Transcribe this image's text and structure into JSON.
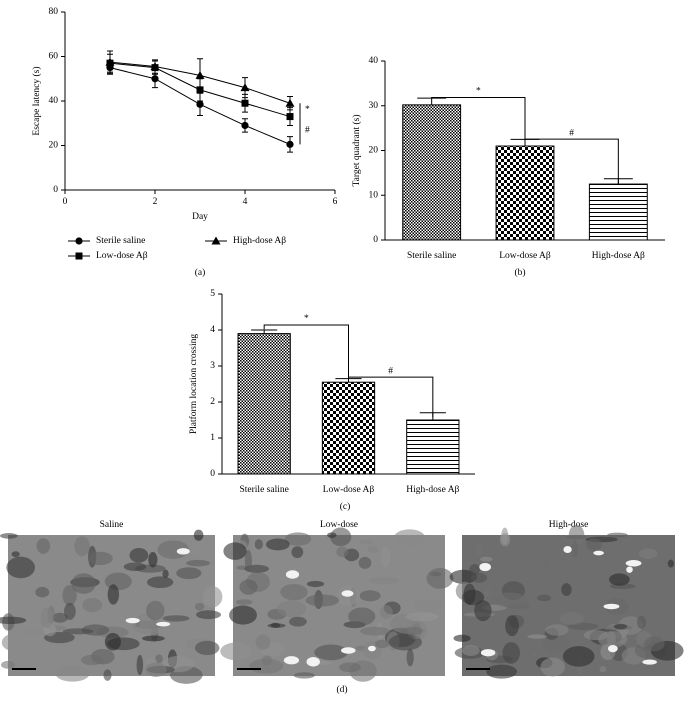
{
  "chart_data": [
    {
      "type": "line",
      "label": "(a)",
      "xlabel": "Day",
      "ylabel": "Escape latency (s)",
      "x": [
        1,
        2,
        3,
        4,
        5
      ],
      "series": [
        {
          "name": "Sterile saline",
          "marker": "circle",
          "color": "#000000",
          "values": [
            55,
            50,
            38.5,
            29,
            20.5
          ],
          "errors": [
            3,
            4,
            5,
            3,
            3.5
          ]
        },
        {
          "name": "Low-dose Aβ",
          "marker": "square",
          "color": "#000000",
          "values": [
            57,
            55,
            45,
            39,
            33
          ],
          "errors": [
            4,
            3,
            5,
            4,
            4
          ]
        },
        {
          "name": "High-dose Aβ",
          "marker": "triangle",
          "color": "#000000",
          "values": [
            57.5,
            55.5,
            51.5,
            46,
            39
          ],
          "errors": [
            5,
            3,
            7.5,
            4.5,
            3
          ]
        }
      ],
      "xlim": [
        0,
        6
      ],
      "xticks": [
        0,
        2,
        4,
        6
      ],
      "ylim": [
        0,
        80
      ],
      "yticks": [
        0,
        20,
        40,
        60,
        80
      ],
      "legend": "bottom",
      "annotations": [
        "*",
        "#"
      ]
    },
    {
      "type": "bar",
      "label": "(b)",
      "ylabel": "Target quadrant (s)",
      "categories": [
        "Sterile saline",
        "Low-dose Aβ",
        "High-dose Aβ"
      ],
      "values": [
        30.2,
        21,
        12.5
      ],
      "errors": [
        1.5,
        1.5,
        1.2
      ],
      "patterns": [
        "fine-check",
        "check",
        "hlines"
      ],
      "ylim": [
        0,
        40
      ],
      "yticks": [
        0,
        10,
        20,
        30,
        40
      ],
      "annotations": [
        "*",
        "#"
      ]
    },
    {
      "type": "bar",
      "label": "(c)",
      "ylabel": "Platform location crossing",
      "categories": [
        "Sterile saline",
        "Low-dose Aβ",
        "High-dose Aβ"
      ],
      "values": [
        3.9,
        2.55,
        1.5
      ],
      "errors": [
        0.1,
        0.1,
        0.2
      ],
      "patterns": [
        "fine-check",
        "check",
        "hlines"
      ],
      "ylim": [
        0,
        5
      ],
      "yticks": [
        0,
        1,
        2,
        3,
        4,
        5
      ],
      "annotations": [
        "*",
        "#"
      ]
    }
  ],
  "micrographs": {
    "titles": [
      "Saline",
      "Low-dose",
      "High-dose"
    ],
    "label": "(d)"
  }
}
